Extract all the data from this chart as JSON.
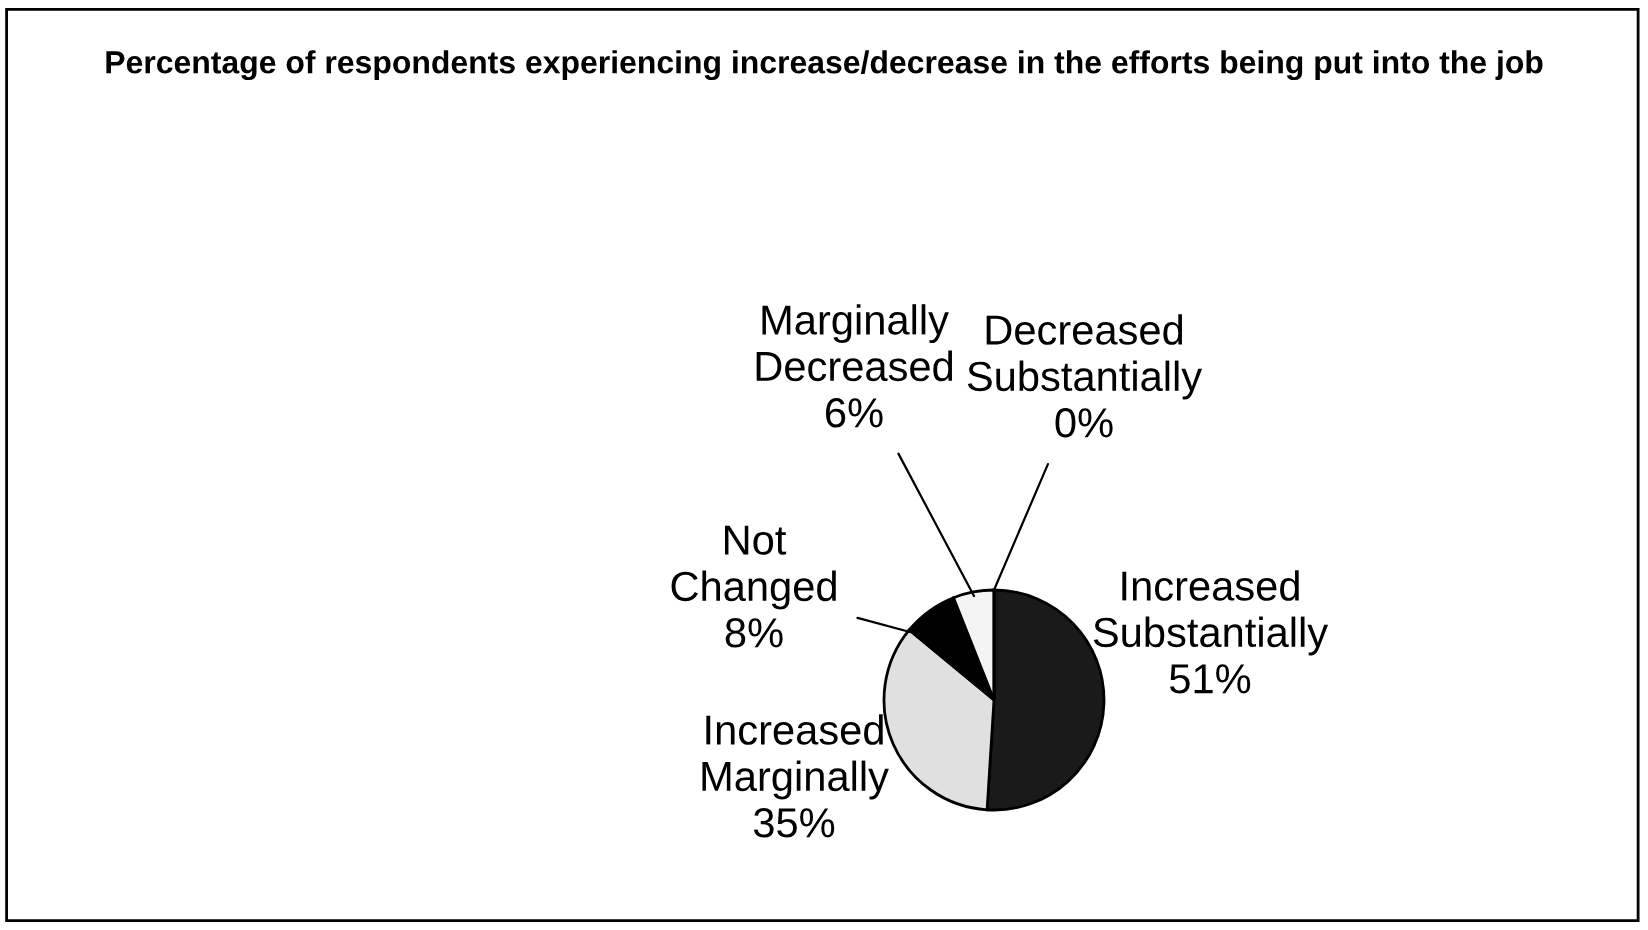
{
  "chart_data": {
    "type": "pie",
    "title": "Percentage of respondents experiencing increase/decrease in the efforts being put into the job",
    "categories": [
      "Increased Substantially",
      "Increased Marginally",
      "Not Changed",
      "Marginally Decreased",
      "Decreased Substantially"
    ],
    "values": [
      51,
      35,
      8,
      6,
      0
    ],
    "value_labels": [
      "51%",
      "35%",
      "8%",
      "6%",
      "0%"
    ],
    "colors": [
      "#1a1a1a",
      "#e0e0e0",
      "#000000",
      "#f4f4f4",
      "#ffffff"
    ],
    "legend": false
  }
}
